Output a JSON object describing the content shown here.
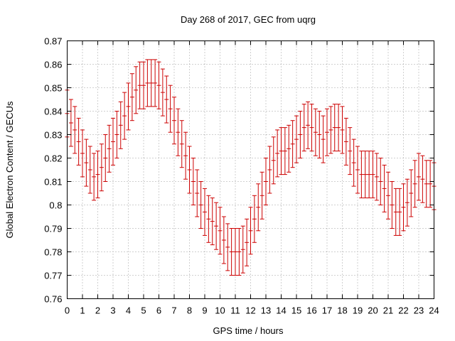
{
  "chart_data": {
    "type": "scatter",
    "style": "error-bars",
    "title": "Day 268 of 2017, GEC from uqrg",
    "xlabel": "GPS time / hours",
    "ylabel": "Global Electron Content / GECUs",
    "xlim": [
      0,
      24
    ],
    "ylim": [
      0.76,
      0.87
    ],
    "xticks": [
      "0",
      "1",
      "2",
      "3",
      "4",
      "5",
      "6",
      "7",
      "8",
      "9",
      "10",
      "11",
      "12",
      "13",
      "14",
      "15",
      "16",
      "17",
      "18",
      "19",
      "20",
      "21",
      "22",
      "23",
      "24"
    ],
    "yticks": [
      "0.76",
      "0.77",
      "0.78",
      "0.79",
      "0.8",
      "0.81",
      "0.82",
      "0.83",
      "0.84",
      "0.85",
      "0.86",
      "0.87"
    ],
    "grid": true,
    "series_color": "#cc0000",
    "x": [
      0,
      0.25,
      0.5,
      0.75,
      1,
      1.25,
      1.5,
      1.75,
      2,
      2.25,
      2.5,
      2.75,
      3,
      3.25,
      3.5,
      3.75,
      4,
      4.25,
      4.5,
      4.75,
      5,
      5.25,
      5.5,
      5.75,
      6,
      6.25,
      6.5,
      6.75,
      7,
      7.25,
      7.5,
      7.75,
      8,
      8.25,
      8.5,
      8.75,
      9,
      9.25,
      9.5,
      9.75,
      10,
      10.25,
      10.5,
      10.75,
      11,
      11.25,
      11.5,
      11.75,
      12,
      12.25,
      12.5,
      12.75,
      13,
      13.25,
      13.5,
      13.75,
      14,
      14.25,
      14.5,
      14.75,
      15,
      15.25,
      15.5,
      15.75,
      16,
      16.25,
      16.5,
      16.75,
      17,
      17.25,
      17.5,
      17.75,
      18,
      18.25,
      18.5,
      18.75,
      19,
      19.25,
      19.5,
      19.75,
      20,
      20.25,
      20.5,
      20.75,
      21,
      21.25,
      21.5,
      21.75,
      22,
      22.25,
      22.5,
      22.75,
      23,
      23.25,
      23.5,
      23.75,
      24
    ],
    "y": [
      0.839,
      0.835,
      0.832,
      0.827,
      0.822,
      0.818,
      0.815,
      0.812,
      0.813,
      0.816,
      0.82,
      0.824,
      0.827,
      0.83,
      0.834,
      0.838,
      0.842,
      0.846,
      0.849,
      0.851,
      0.851,
      0.852,
      0.852,
      0.852,
      0.851,
      0.848,
      0.845,
      0.841,
      0.836,
      0.831,
      0.826,
      0.821,
      0.815,
      0.81,
      0.805,
      0.8,
      0.797,
      0.794,
      0.793,
      0.791,
      0.789,
      0.785,
      0.782,
      0.78,
      0.78,
      0.78,
      0.781,
      0.784,
      0.789,
      0.794,
      0.799,
      0.804,
      0.81,
      0.815,
      0.819,
      0.822,
      0.823,
      0.823,
      0.824,
      0.826,
      0.828,
      0.83,
      0.833,
      0.834,
      0.833,
      0.831,
      0.83,
      0.828,
      0.831,
      0.832,
      0.833,
      0.833,
      0.832,
      0.827,
      0.823,
      0.818,
      0.815,
      0.813,
      0.813,
      0.813,
      0.813,
      0.812,
      0.81,
      0.807,
      0.804,
      0.8,
      0.797,
      0.797,
      0.799,
      0.801,
      0.805,
      0.809,
      0.812,
      0.811,
      0.809,
      0.809,
      0.808
    ],
    "error": [
      0.01,
      0.01,
      0.01,
      0.01,
      0.01,
      0.01,
      0.01,
      0.01,
      0.01,
      0.01,
      0.01,
      0.01,
      0.01,
      0.01,
      0.01,
      0.01,
      0.01,
      0.01,
      0.01,
      0.01,
      0.01,
      0.01,
      0.01,
      0.01,
      0.01,
      0.01,
      0.01,
      0.01,
      0.01,
      0.01,
      0.01,
      0.01,
      0.01,
      0.01,
      0.01,
      0.01,
      0.01,
      0.01,
      0.01,
      0.01,
      0.01,
      0.01,
      0.01,
      0.01,
      0.01,
      0.01,
      0.01,
      0.01,
      0.01,
      0.01,
      0.01,
      0.01,
      0.01,
      0.01,
      0.01,
      0.01,
      0.01,
      0.01,
      0.01,
      0.01,
      0.01,
      0.01,
      0.01,
      0.01,
      0.01,
      0.01,
      0.01,
      0.01,
      0.01,
      0.01,
      0.01,
      0.01,
      0.01,
      0.01,
      0.01,
      0.01,
      0.01,
      0.01,
      0.01,
      0.01,
      0.01,
      0.01,
      0.01,
      0.01,
      0.01,
      0.01,
      0.01,
      0.01,
      0.01,
      0.01,
      0.01,
      0.01,
      0.01,
      0.01,
      0.01,
      0.01,
      0.01
    ]
  }
}
